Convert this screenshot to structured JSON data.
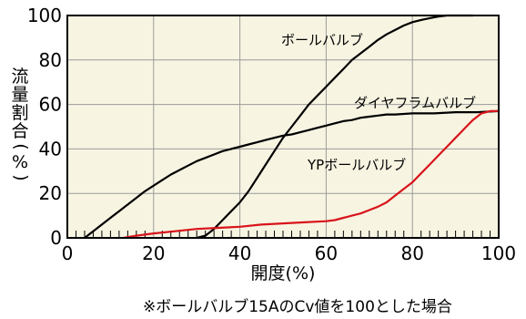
{
  "chart_data": {
    "type": "line",
    "title": "",
    "xlabel": "開度(%)",
    "ylabel": "流量割合(%)",
    "xlim": [
      0,
      100
    ],
    "ylim": [
      0,
      100
    ],
    "x_ticks": [
      "0",
      "20",
      "40",
      "60",
      "80",
      "100"
    ],
    "y_ticks": [
      "0",
      "20",
      "40",
      "60",
      "80",
      "100"
    ],
    "grid": true,
    "background_color": "#f7f4e2",
    "series": [
      {
        "name": "ボールバルブ",
        "color": "#000000",
        "points": [
          [
            30,
            0
          ],
          [
            32,
            1
          ],
          [
            34,
            4
          ],
          [
            36,
            8
          ],
          [
            38,
            12
          ],
          [
            40,
            16
          ],
          [
            42,
            21
          ],
          [
            44,
            27
          ],
          [
            46,
            33
          ],
          [
            48,
            39
          ],
          [
            50,
            45
          ],
          [
            52,
            50
          ],
          [
            54,
            55
          ],
          [
            56,
            60
          ],
          [
            58,
            64
          ],
          [
            60,
            68
          ],
          [
            62,
            72
          ],
          [
            64,
            76
          ],
          [
            66,
            80
          ],
          [
            68,
            83
          ],
          [
            70,
            86
          ],
          [
            72,
            89
          ],
          [
            74,
            91.5
          ],
          [
            76,
            93.5
          ],
          [
            78,
            95.5
          ],
          [
            80,
            97
          ],
          [
            82,
            98
          ],
          [
            84,
            98.8
          ],
          [
            86,
            99.5
          ],
          [
            88,
            100
          ],
          [
            90,
            100
          ],
          [
            92,
            100
          ],
          [
            94,
            100
          ]
        ]
      },
      {
        "name": "ダイヤフラムバルブ",
        "color": "#000000",
        "points": [
          [
            4,
            0
          ],
          [
            6,
            3
          ],
          [
            8,
            6
          ],
          [
            10,
            9
          ],
          [
            12,
            12
          ],
          [
            14,
            15
          ],
          [
            16,
            18
          ],
          [
            18,
            21
          ],
          [
            20,
            23.5
          ],
          [
            22,
            26
          ],
          [
            24,
            28.5
          ],
          [
            26,
            30.5
          ],
          [
            28,
            32.5
          ],
          [
            30,
            34.5
          ],
          [
            32,
            36
          ],
          [
            34,
            37.5
          ],
          [
            36,
            39
          ],
          [
            38,
            40
          ],
          [
            40,
            41
          ],
          [
            42,
            42
          ],
          [
            44,
            43
          ],
          [
            46,
            44
          ],
          [
            48,
            45
          ],
          [
            50,
            46
          ],
          [
            52,
            46.5
          ],
          [
            54,
            47.5
          ],
          [
            56,
            48.5
          ],
          [
            58,
            49.5
          ],
          [
            60,
            50.5
          ],
          [
            62,
            51.5
          ],
          [
            64,
            52.5
          ],
          [
            66,
            53
          ],
          [
            68,
            54
          ],
          [
            70,
            54.5
          ],
          [
            72,
            55
          ],
          [
            74,
            55.5
          ],
          [
            76,
            55.5
          ],
          [
            80,
            56
          ],
          [
            85,
            56
          ],
          [
            90,
            56.5
          ],
          [
            95,
            56.5
          ],
          [
            100,
            57
          ]
        ]
      },
      {
        "name": "YPボールバルブ",
        "color": "#d9141b",
        "points": [
          [
            13,
            0
          ],
          [
            16,
            1
          ],
          [
            20,
            2
          ],
          [
            25,
            3
          ],
          [
            30,
            4
          ],
          [
            35,
            4.5
          ],
          [
            40,
            5
          ],
          [
            45,
            6
          ],
          [
            50,
            6.5
          ],
          [
            55,
            7
          ],
          [
            60,
            7.5
          ],
          [
            62,
            8
          ],
          [
            64,
            9
          ],
          [
            66,
            10
          ],
          [
            68,
            11
          ],
          [
            70,
            12.5
          ],
          [
            72,
            14
          ],
          [
            74,
            16
          ],
          [
            76,
            19
          ],
          [
            78,
            22
          ],
          [
            80,
            25
          ],
          [
            82,
            29
          ],
          [
            84,
            33
          ],
          [
            86,
            37
          ],
          [
            88,
            41
          ],
          [
            90,
            45
          ],
          [
            92,
            49
          ],
          [
            94,
            53
          ],
          [
            96,
            56
          ],
          [
            98,
            57
          ],
          [
            100,
            57
          ]
        ]
      }
    ],
    "annotations": {
      "series_labels": [
        "ボールバルブ",
        "ダイヤフラムバルブ",
        "YPボールバルブ"
      ],
      "footnote": "※ボールバルブ15AのCv値を100とした場合"
    }
  }
}
